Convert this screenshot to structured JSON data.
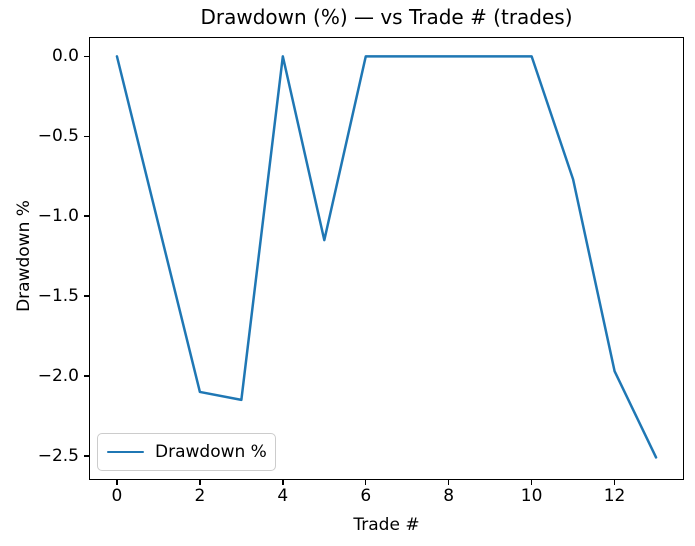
{
  "figure": {
    "background": "#ffffff",
    "text_color": "#000000",
    "frame_color": "#000000"
  },
  "chart_data": {
    "type": "line",
    "title": "Drawdown (%) — vs Trade # (trades)",
    "xlabel": "Trade #",
    "ylabel": "Drawdown %",
    "x": [
      0,
      1,
      2,
      3,
      4,
      5,
      6,
      7,
      8,
      9,
      10,
      11,
      12,
      13
    ],
    "series": [
      {
        "name": "Drawdown %",
        "values": [
          0.0,
          -1.05,
          -2.1,
          -2.15,
          0.0,
          -1.15,
          0.0,
          0.0,
          0.0,
          0.0,
          0.0,
          -0.77,
          -1.97,
          -2.51
        ],
        "color": "#1f77b4",
        "line_width": 2.5
      }
    ],
    "xlim": [
      -0.65,
      13.65
    ],
    "ylim": [
      -2.645,
      0.115
    ],
    "xticks": {
      "values": [
        0,
        2,
        4,
        6,
        8,
        10,
        12
      ],
      "labels": [
        "0",
        "2",
        "4",
        "6",
        "8",
        "10",
        "12"
      ]
    },
    "yticks": {
      "values": [
        0.0,
        -0.5,
        -1.0,
        -1.5,
        -2.0,
        -2.5
      ],
      "labels": [
        "0.0",
        "−0.5",
        "−1.0",
        "−1.5",
        "−2.0",
        "−2.5"
      ]
    },
    "grid": false,
    "legend": {
      "position": "lower left",
      "entries": [
        {
          "label": "Drawdown %",
          "color": "#1f77b4"
        }
      ]
    }
  }
}
